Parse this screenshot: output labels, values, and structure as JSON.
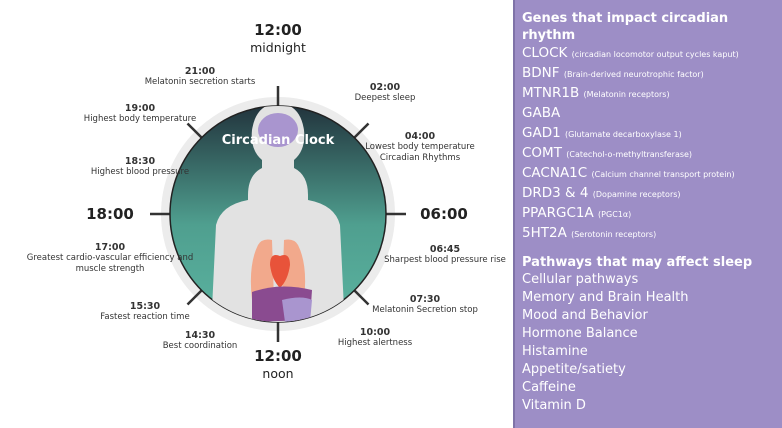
{
  "clock": {
    "title": "Circadian Clock",
    "colors": {
      "top": "#22343d",
      "bottom": "#5bb3a0",
      "ring": "#e8e8e8",
      "brain": "#a995cf",
      "lungs": "#f2a98c",
      "heart": "#e8533a",
      "liver": "#8a4b90"
    },
    "hours": {
      "top": {
        "time": "12:00",
        "word": "midnight"
      },
      "bottom": {
        "time": "12:00",
        "word": "noon"
      },
      "left": {
        "time": "18:00"
      },
      "right": {
        "time": "06:00"
      }
    },
    "events": [
      {
        "time": "21:00",
        "text": "Melatonin secretion starts"
      },
      {
        "time": "02:00",
        "text": "Deepest sleep"
      },
      {
        "time": "19:00",
        "text": "Highest body temperature"
      },
      {
        "time": "04:00",
        "text": "Lowest body temperature Circadian Rhythms"
      },
      {
        "time": "18:30",
        "text": "Highest blood pressure"
      },
      {
        "time": "06:45",
        "text": "Sharpest blood pressure rise"
      },
      {
        "time": "17:00",
        "text": "Greatest cardio-vascular efficiency and muscle strength"
      },
      {
        "time": "07:30",
        "text": "Melatonin Secretion stop"
      },
      {
        "time": "15:30",
        "text": "Fastest reaction time"
      },
      {
        "time": "10:00",
        "text": "Highest alertness"
      },
      {
        "time": "14:30",
        "text": "Best coordination"
      }
    ]
  },
  "panel": {
    "genes_heading": "Genes that impact circadian rhythm",
    "genes": [
      {
        "name": "CLOCK",
        "desc": "(circadian locomotor output cycles kaput)"
      },
      {
        "name": "BDNF",
        "desc": "(Brain-derived neurotrophic factor)"
      },
      {
        "name": "MTNR1B",
        "desc": "(Melatonin receptors)"
      },
      {
        "name": "GABA",
        "desc": ""
      },
      {
        "name": "GAD1",
        "desc": "(Glutamate decarboxylase 1)"
      },
      {
        "name": "COMT",
        "desc": "(Catechol-o-methyltransferase)"
      },
      {
        "name": "CACNA1C",
        "desc": "(Calcium channel transport protein)"
      },
      {
        "name": "DRD3 & 4",
        "desc": "(Dopamine receptors)"
      },
      {
        "name": "PPARGC1A",
        "desc": "(PGC1α)"
      },
      {
        "name": "5HT2A",
        "desc": "(Serotonin receptors)"
      }
    ],
    "pathways_heading": "Pathways that may affect sleep",
    "pathways": [
      "Cellular pathways",
      "Memory and Brain Health",
      "Mood and Behavior",
      "Hormone Balance",
      "Histamine",
      "Appetite/satiety",
      "Caffeine",
      "Vitamin D"
    ]
  }
}
